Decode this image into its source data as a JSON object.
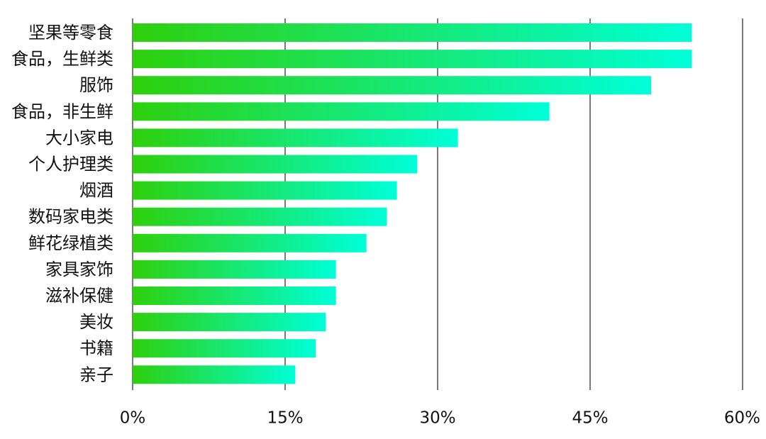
{
  "chart_data": {
    "type": "bar",
    "orientation": "horizontal",
    "categories": [
      "坚果等零食",
      "食品，生鲜类",
      "服饰",
      "食品，非生鲜",
      "大小家电",
      "个人护理类",
      "烟酒",
      "数码家电类",
      "鲜花绿植类",
      "家具家饰",
      "滋补保健",
      "美妆",
      "书籍",
      "亲子"
    ],
    "values": [
      55,
      55,
      51,
      41,
      32,
      28,
      26,
      25,
      23,
      20,
      20,
      19,
      18,
      16
    ],
    "unit": "%",
    "xlim": [
      0,
      60
    ],
    "xticks": [
      0,
      15,
      30,
      45,
      60
    ],
    "xtick_labels": [
      "0%",
      "15%",
      "30%",
      "45%",
      "60%"
    ],
    "title": "",
    "xlabel": "",
    "ylabel": "",
    "grid": "vertical",
    "legend": "none",
    "colors": {
      "bar_start": "#2ed00c",
      "bar_end": "#00ffd8",
      "grid": "#333333",
      "text": "#111111"
    }
  }
}
